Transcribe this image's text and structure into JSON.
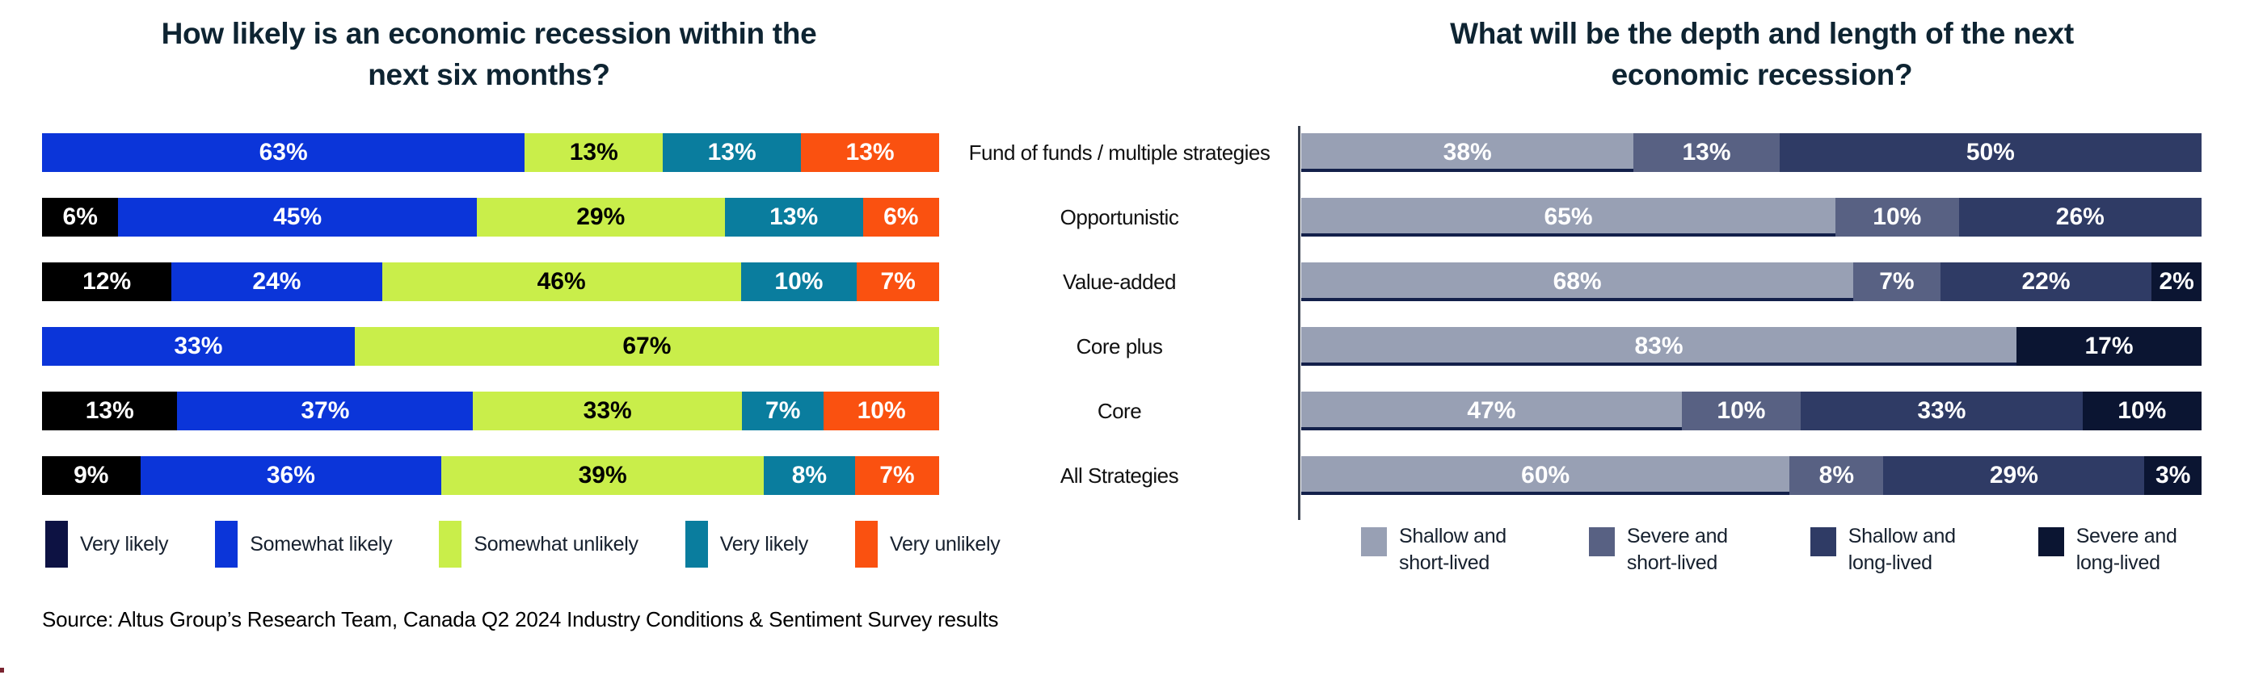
{
  "source_note": "Source: Altus Group’s Research Team, Canada Q2 2024 Industry Conditions & Sentiment Survey results",
  "chart_data": [
    {
      "type": "bar",
      "stacked": true,
      "orientation": "horizontal",
      "title": "How likely is an economic recession within the next six months?",
      "title_lines": [
        "How likely is an economic recession within the",
        "next six months?"
      ],
      "categories": [
        "Fund of funds / multiple strategies",
        "Opportunistic",
        "Value-added",
        "Core plus",
        "Core",
        "All Strategies"
      ],
      "unit": "%",
      "legend_position": "bottom",
      "series": [
        {
          "name": "Very likely",
          "color": "#000000",
          "legend_color": "#0D1243",
          "values": [
            0,
            6,
            12,
            0,
            13,
            9
          ]
        },
        {
          "name": "Somewhat likely",
          "color": "#0B35D9",
          "values": [
            63,
            45,
            24,
            33,
            37,
            36
          ]
        },
        {
          "name": "Somewhat unlikely",
          "color": "#C9EE4A",
          "label_color": "#000000",
          "values": [
            13,
            29,
            46,
            67,
            33,
            39
          ]
        },
        {
          "name": "Very likely",
          "color": "#0A7D9E",
          "values": [
            13,
            13,
            10,
            0,
            7,
            8
          ]
        },
        {
          "name": "Very unlikely",
          "color": "#FA5110",
          "values": [
            13,
            6,
            7,
            0,
            10,
            7
          ]
        }
      ]
    },
    {
      "type": "bar",
      "stacked": true,
      "orientation": "horizontal",
      "title": "What will be the depth and length of the next economic recession?",
      "title_lines": [
        "What will be the depth and length of the next",
        "economic recession?"
      ],
      "categories": [
        "Fund of funds / multiple strategies",
        "Opportunistic",
        "Value-added",
        "Core plus",
        "Core",
        "All Strategies"
      ],
      "unit": "%",
      "legend_position": "bottom",
      "series": [
        {
          "name": "Shallow and\nshort-lived",
          "color": "#98A0B4",
          "underline": "#13204A",
          "values": [
            38,
            65,
            68,
            83,
            47,
            60
          ]
        },
        {
          "name": "Severe and\nshort-lived",
          "color": "#586183",
          "values": [
            13,
            10,
            7,
            0,
            10,
            8
          ]
        },
        {
          "name": "Shallow and\nlong-lived",
          "color": "#2F3B65",
          "values": [
            50,
            26,
            22,
            0,
            33,
            29
          ]
        },
        {
          "name": "Severe and\nlong-lived",
          "color": "#0B1532",
          "values": [
            0,
            0,
            2,
            17,
            10,
            3
          ]
        }
      ]
    }
  ]
}
